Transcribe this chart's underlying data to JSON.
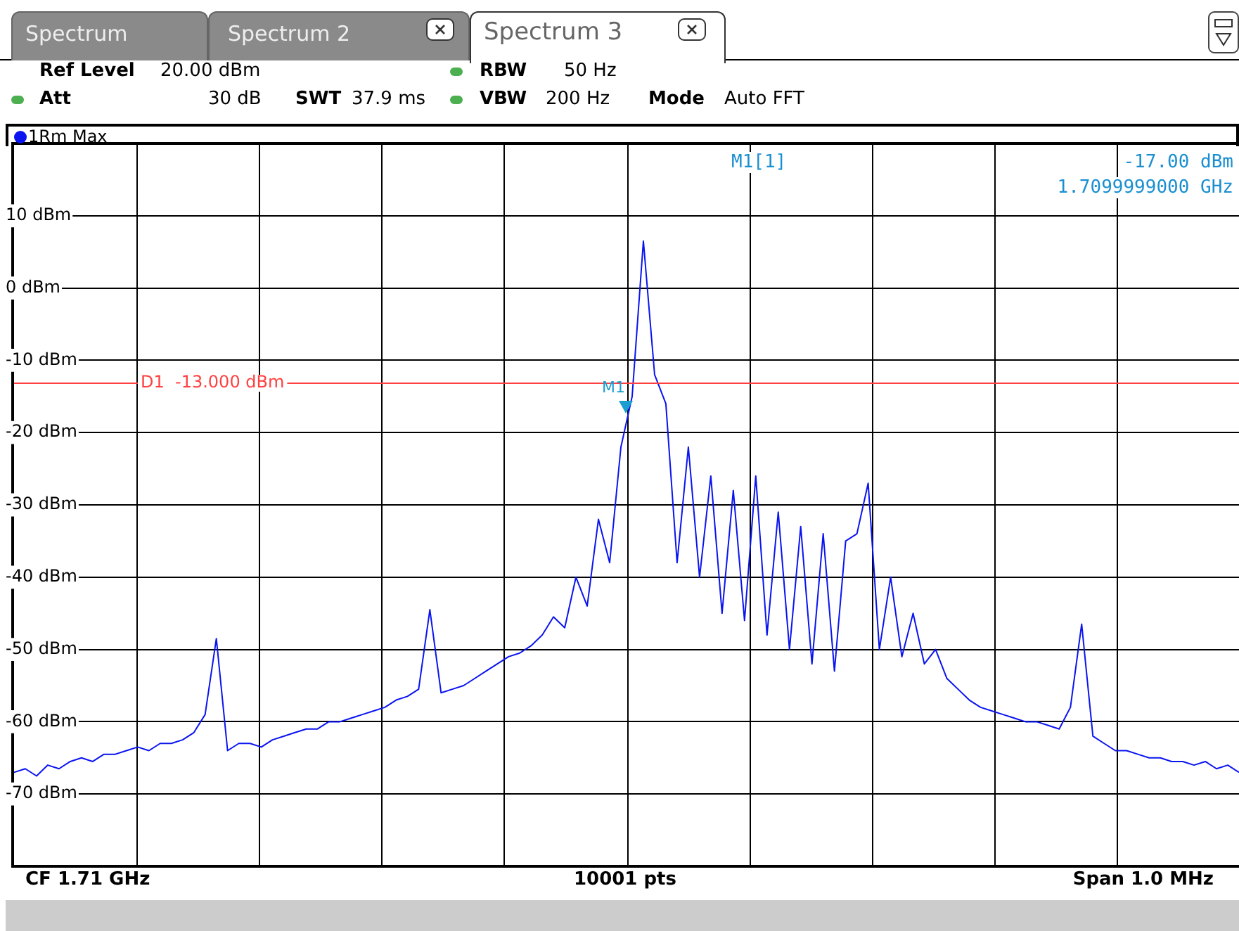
{
  "chart_data": {
    "type": "line",
    "categories": [
      null,
      null,
      null,
      null,
      null,
      null,
      null,
      null,
      null,
      null,
      null,
      null,
      null,
      null,
      null,
      null,
      null,
      null,
      null,
      null,
      null,
      null,
      null,
      null,
      null,
      null,
      null,
      null,
      null,
      null,
      null,
      null,
      null,
      null,
      null,
      null,
      null,
      null,
      null,
      null,
      null,
      null,
      null,
      null,
      null,
      null,
      null,
      null,
      null,
      null,
      null,
      null,
      null,
      null,
      null,
      null,
      null,
      null,
      null,
      null,
      null,
      null,
      null,
      null,
      null,
      null,
      null,
      null,
      null,
      null,
      null,
      null,
      null,
      null,
      null,
      null,
      null,
      null,
      null,
      null,
      null,
      null,
      null,
      null,
      null,
      null,
      null,
      null,
      null,
      null,
      null,
      null,
      null,
      null,
      null,
      null,
      null,
      null,
      null,
      null,
      null,
      null,
      null,
      null,
      null,
      null,
      null,
      null,
      null,
      null
    ],
    "series": [
      {
        "name": "1Rm Max",
        "color": "#0a14f0",
        "values": [
          -67,
          -66.5,
          -67.5,
          -66,
          -66.5,
          -65.5,
          -65,
          -65.5,
          -64.5,
          -64.5,
          -64,
          -63.5,
          -64,
          -63,
          -63,
          -62.5,
          -61.5,
          -59,
          -48.5,
          -64,
          -63,
          -63,
          -63.5,
          -62.5,
          -62,
          -61.5,
          -61,
          -61,
          -60,
          -60,
          -59.5,
          -59,
          -58.5,
          -58,
          -57,
          -56.5,
          -55.5,
          -44.5,
          -56,
          -55.5,
          -55,
          -54,
          -53,
          -52,
          -51,
          -50.5,
          -49.5,
          -48,
          -45.5,
          -47,
          -40,
          -44,
          -32,
          -38,
          -22,
          -15,
          6.5,
          -12,
          -16,
          -38,
          -22,
          -40,
          -26,
          -45,
          -28,
          -46,
          -26,
          -48,
          -31,
          -50,
          -33,
          -52,
          -34,
          -53,
          -35,
          -34,
          -27,
          -50,
          -40,
          -51,
          -45,
          -52,
          -50,
          -54,
          -55.5,
          -57,
          -58,
          -58.5,
          -59,
          -59.5,
          -60,
          -60,
          -60.5,
          -61,
          -58,
          -46.5,
          -62,
          -63,
          -64,
          -64,
          -64.5,
          -65,
          -65,
          -65.5,
          -65.5,
          -66,
          -65.5,
          -66.5,
          -66,
          -67
        ]
      }
    ],
    "ylim": [
      -80,
      20
    ],
    "yticks": [
      {
        "value": 10,
        "label": "10 dBm"
      },
      {
        "value": 0,
        "label": "0 dBm"
      },
      {
        "value": -10,
        "label": "-10 dBm"
      },
      {
        "value": -20,
        "label": "-20 dBm"
      },
      {
        "value": -30,
        "label": "-30 dBm"
      },
      {
        "value": -40,
        "label": "-40 dBm"
      },
      {
        "value": -50,
        "label": "-50 dBm"
      },
      {
        "value": -60,
        "label": "-60 dBm"
      },
      {
        "value": -70,
        "label": "-70 dBm"
      }
    ],
    "grid": true,
    "legend": "top left",
    "marker": "none",
    "line_style": "solid",
    "ref_lines": [
      {
        "axis": "y",
        "value": -13,
        "label": "D1  -13.000 dBm",
        "color": "#ff4040"
      }
    ],
    "annotations": [
      "Spectrum",
      "Spectrum 2",
      "Spectrum 3",
      "Ref Level",
      "20.00 dBm",
      "Att",
      "30 dB",
      "SWT",
      "37.9 ms",
      "RBW",
      "50 Hz",
      "VBW",
      "200 Hz",
      "Mode",
      "Auto FFT",
      "M1[1]",
      "-17.00 dBm",
      "1.7099999000 GHz",
      "CF 1.71 GHz",
      "10001 pts",
      "Span 1.0 MHz",
      "M1"
    ]
  }
}
